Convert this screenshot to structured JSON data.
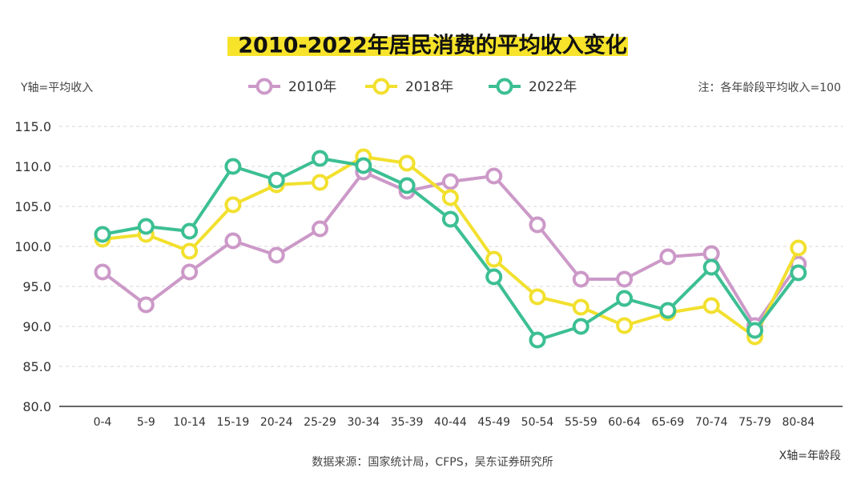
{
  "chart_data": {
    "type": "line",
    "title": "2010-2022年居民消费的平均收入变化",
    "ylabel": "Y轴=平均收入",
    "xlabel": "X轴=年龄段",
    "note": "注：各年龄段平均收入=100",
    "source": "数据来源：国家统计局，CFPS，吴东证券研究所",
    "ylim": [
      80,
      115
    ],
    "yticks": [
      80,
      85,
      90,
      95,
      100,
      105,
      110,
      115
    ],
    "ytick_labels": [
      "80.0",
      "85.0",
      "90.0",
      "95.0",
      "100.0",
      "105.0",
      "110.0",
      "115.0"
    ],
    "grid": true,
    "legend_position": "top-center",
    "categories": [
      "0-4",
      "5-9",
      "10-14",
      "15-19",
      "20-24",
      "25-29",
      "30-34",
      "35-39",
      "40-44",
      "45-49",
      "50-54",
      "55-59",
      "60-64",
      "65-69",
      "70-74",
      "75-79",
      "80-84"
    ],
    "series": [
      {
        "name": "2010年",
        "color": "#cc99c8",
        "values": [
          96.8,
          92.7,
          96.8,
          100.7,
          98.9,
          102.2,
          109.3,
          106.9,
          108.1,
          108.8,
          102.7,
          95.9,
          95.9,
          98.7,
          99.1,
          90.1,
          97.8
        ]
      },
      {
        "name": "2018年",
        "color": "#f2e02e",
        "values": [
          100.9,
          101.5,
          99.4,
          105.2,
          107.7,
          108.0,
          111.2,
          110.4,
          106.1,
          98.4,
          93.7,
          92.4,
          90.1,
          91.7,
          92.6,
          88.7,
          99.8
        ]
      },
      {
        "name": "2022年",
        "color": "#3cbf93",
        "values": [
          101.5,
          102.5,
          101.9,
          110.0,
          108.3,
          111.0,
          110.1,
          107.6,
          103.4,
          96.2,
          88.3,
          90.0,
          93.5,
          92.0,
          97.4,
          89.5,
          96.7
        ]
      }
    ]
  }
}
